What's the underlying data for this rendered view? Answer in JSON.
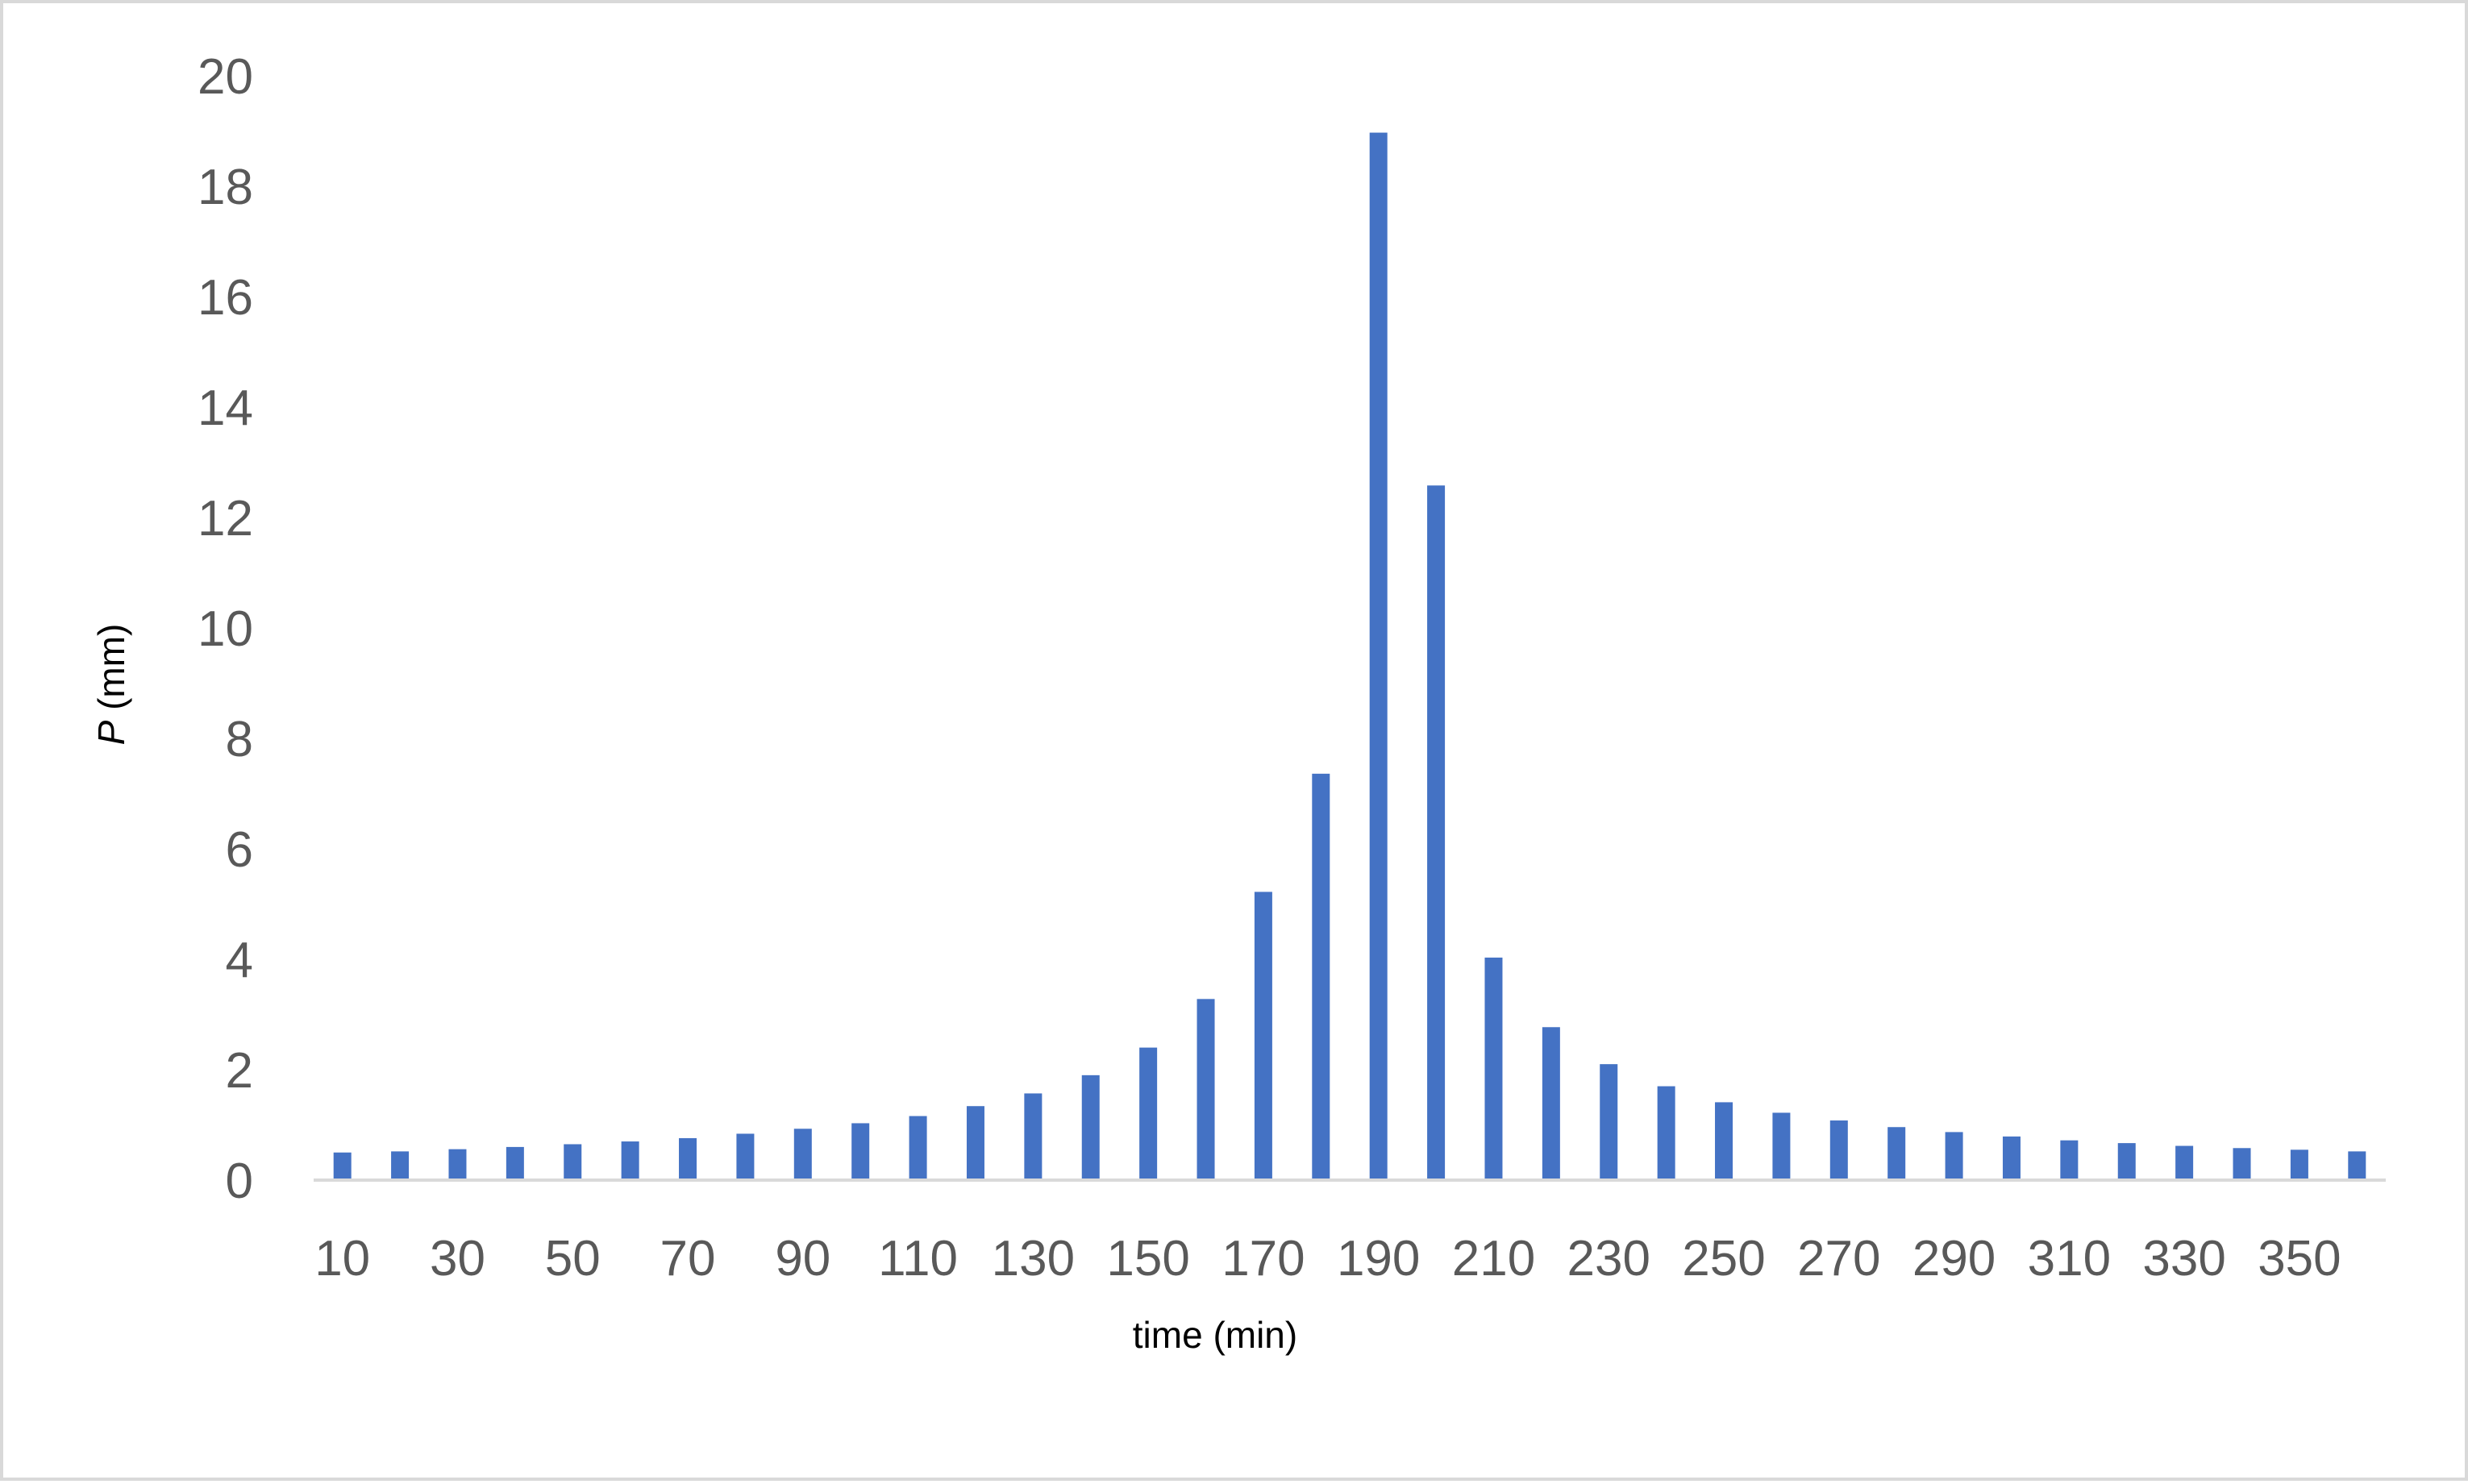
{
  "chart_data": {
    "type": "bar",
    "xlabel": "time (min)",
    "ylabel_symbol": "P",
    "ylabel_unit": "(mm)",
    "ylim": [
      0,
      20
    ],
    "yticks": [
      0,
      2,
      4,
      6,
      8,
      10,
      12,
      14,
      16,
      18,
      20
    ],
    "x_tick_labels": [
      "10",
      "30",
      "50",
      "70",
      "90",
      "110",
      "130",
      "150",
      "170",
      "190",
      "210",
      "230",
      "250",
      "270",
      "290",
      "310",
      "330",
      "350"
    ],
    "categories": [
      10,
      20,
      30,
      40,
      50,
      60,
      70,
      80,
      90,
      100,
      110,
      120,
      130,
      140,
      150,
      160,
      170,
      180,
      190,
      200,
      210,
      220,
      230,
      240,
      250,
      260,
      270,
      280,
      290,
      300,
      310,
      320,
      330,
      340,
      350,
      360
    ],
    "values": [
      0.5,
      0.52,
      0.56,
      0.6,
      0.65,
      0.7,
      0.76,
      0.84,
      0.93,
      1.03,
      1.16,
      1.34,
      1.57,
      1.9,
      2.4,
      3.28,
      5.22,
      7.36,
      18.97,
      12.58,
      4.03,
      2.77,
      2.1,
      1.7,
      1.41,
      1.22,
      1.08,
      0.96,
      0.87,
      0.79,
      0.72,
      0.67,
      0.62,
      0.58,
      0.55,
      0.52
    ],
    "grid": false,
    "legend": "none",
    "colors": {
      "bar": "#4472c4",
      "axis_line": "#d9d9d9",
      "tick_text": "#595959",
      "title_text": "#000000",
      "frame": "#d9d9d9"
    }
  }
}
